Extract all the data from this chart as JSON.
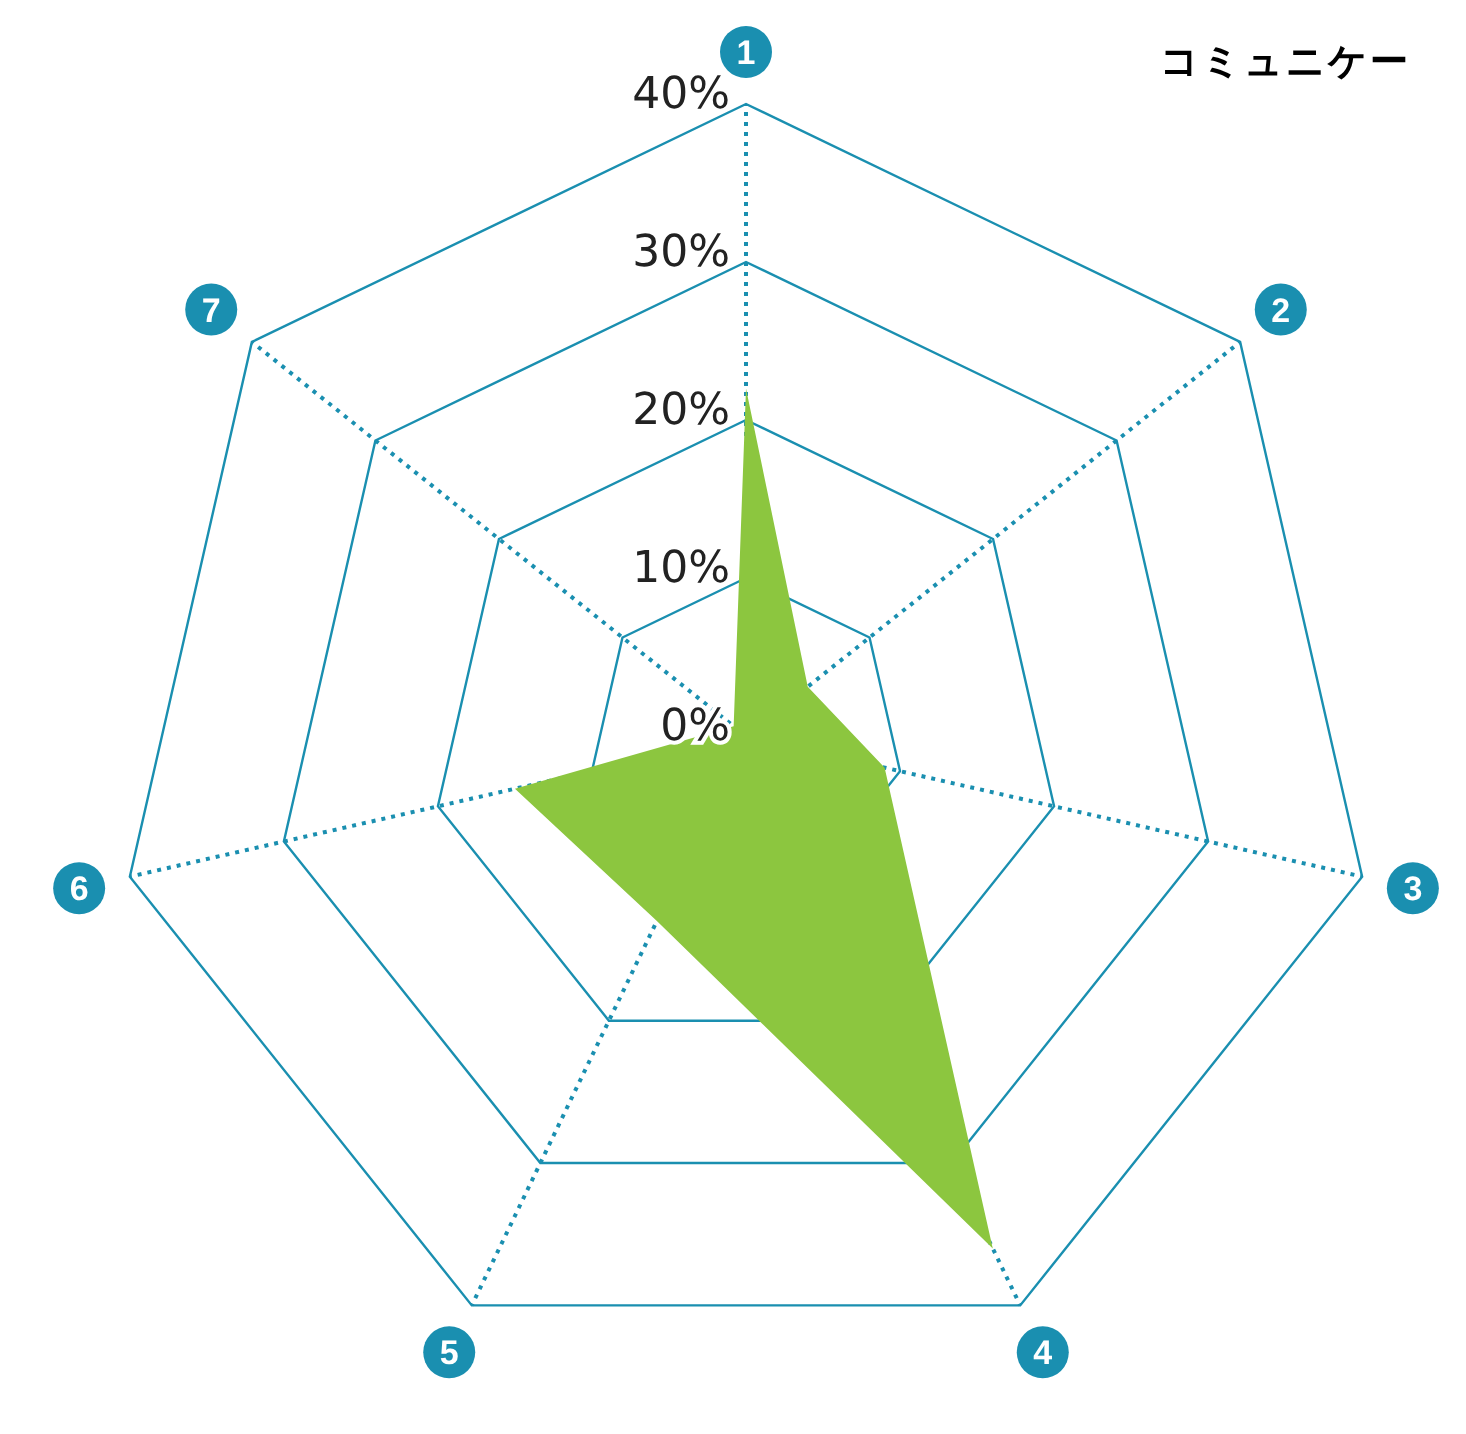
{
  "chart_data": {
    "type": "radar",
    "title": "コミュニケー",
    "categories": [
      "1",
      "2",
      "3",
      "4",
      "5",
      "6",
      "7"
    ],
    "series": [
      {
        "color": "#8cc63f",
        "values": [
          22,
          5,
          9,
          36,
          13,
          15,
          1
        ]
      }
    ],
    "ylim": [
      0,
      40
    ],
    "yticks": [
      {
        "value": 0,
        "label": "0%"
      },
      {
        "value": 10,
        "label": "10%"
      },
      {
        "value": 20,
        "label": "20%"
      },
      {
        "value": 30,
        "label": "30%"
      },
      {
        "value": 40,
        "label": "40%"
      }
    ],
    "grid": true
  }
}
